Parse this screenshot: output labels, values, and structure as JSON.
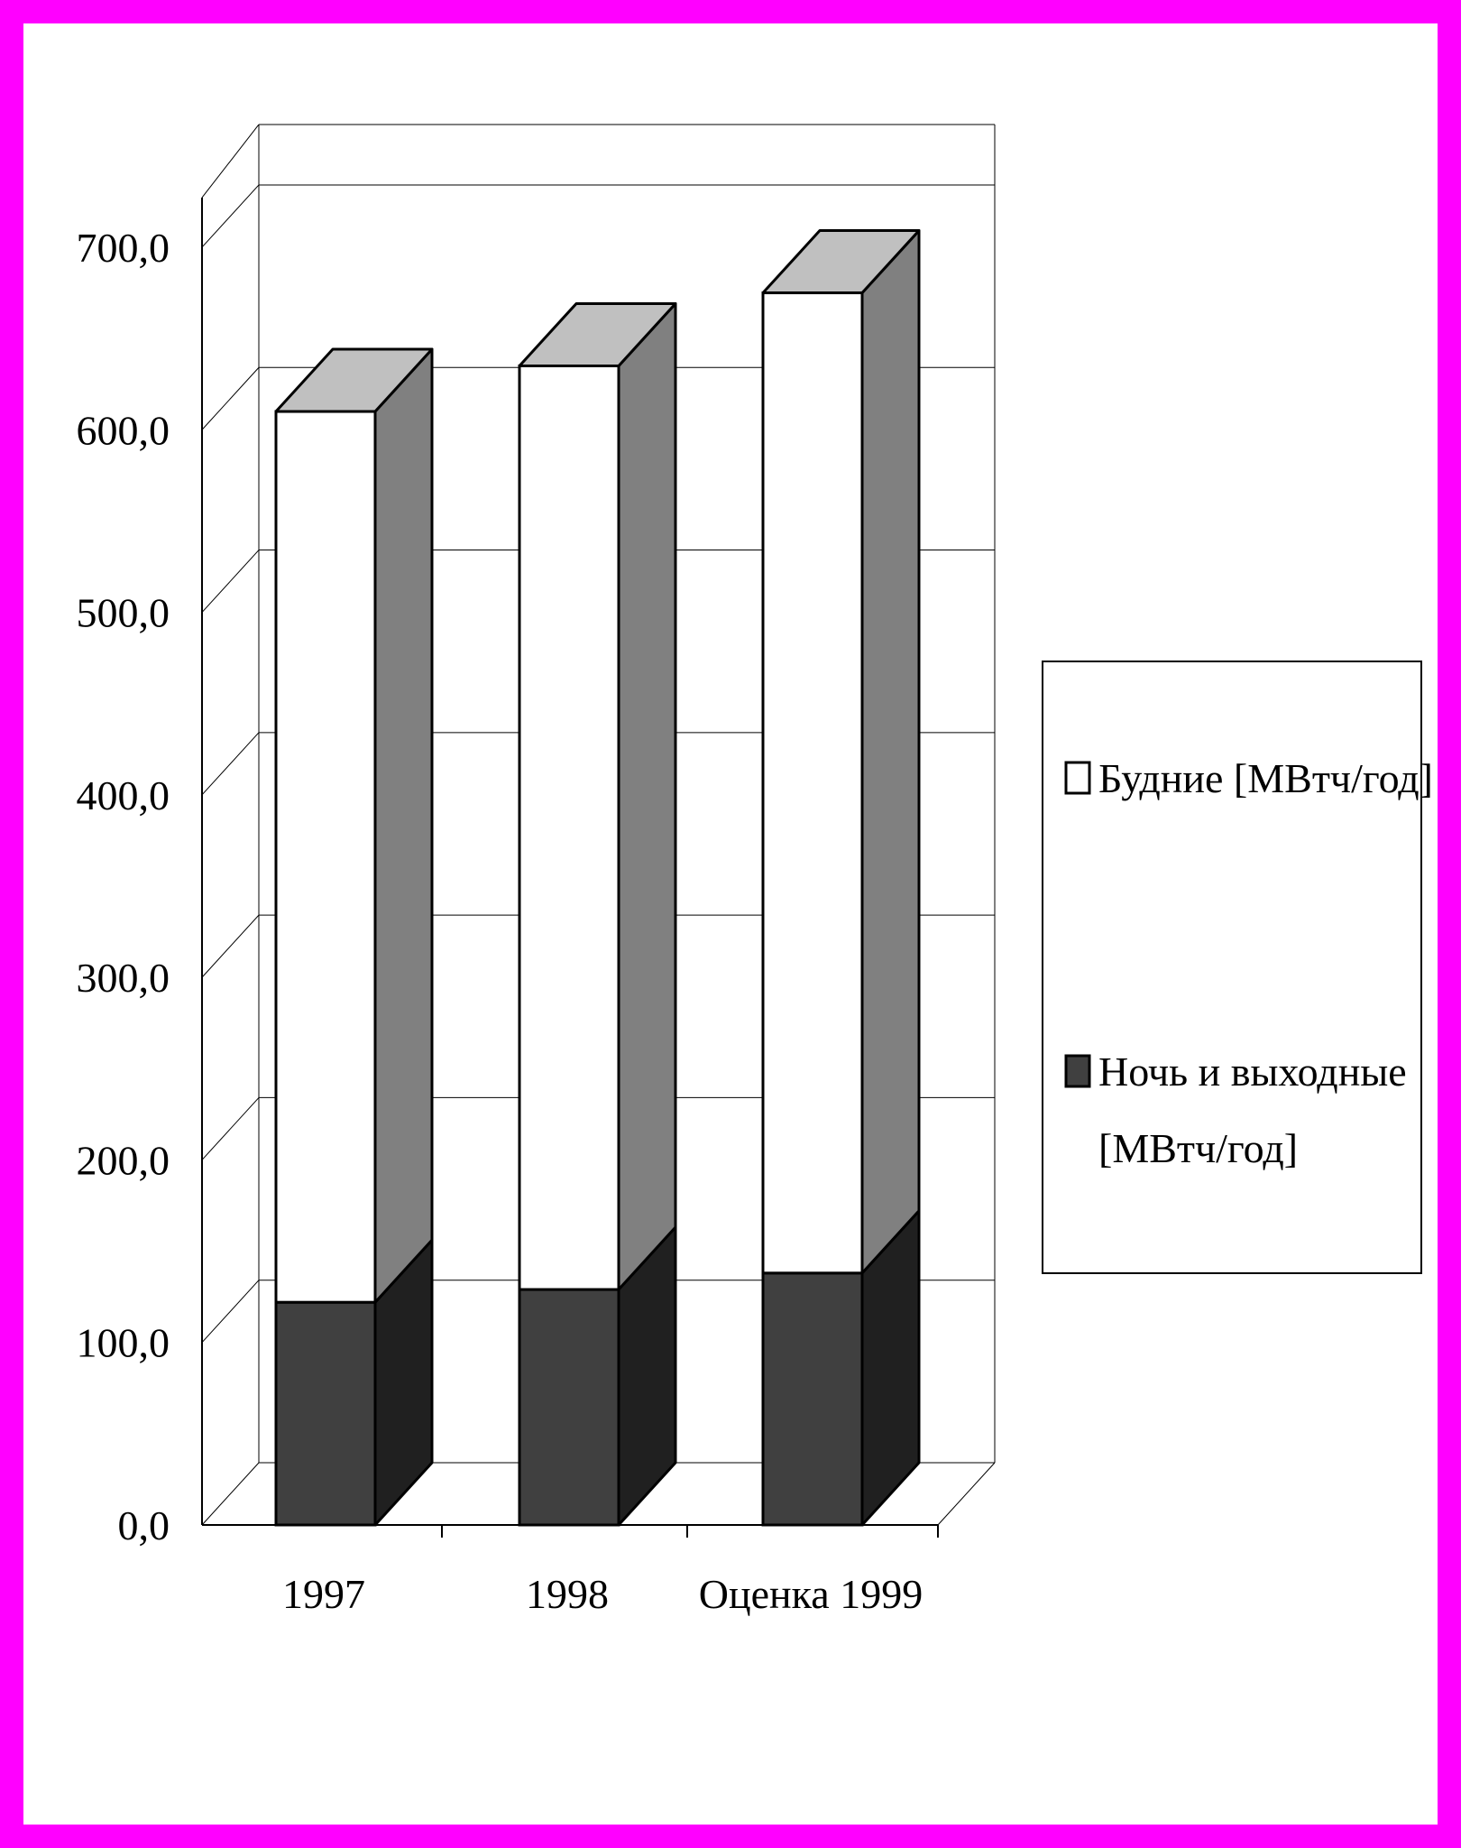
{
  "colors": {
    "frame": "#ff00ff",
    "background": "#ffffff",
    "weekday_front": "#ffffff",
    "weekday_side": "#808080",
    "top_face": "#c0c0c0",
    "night_front": "#404040",
    "night_side": "#202020"
  },
  "chart_data": {
    "type": "bar",
    "stacked": true,
    "three_d": true,
    "categories": [
      "1997",
      "1998",
      "Оценка 1999"
    ],
    "series": [
      {
        "name": "Ночь и выходные [МВтч/год]",
        "values": [
          122,
          129,
          138
        ]
      },
      {
        "name": "Будние [МВтч/год]",
        "values": [
          488,
          506,
          537
        ]
      }
    ],
    "y_ticks": [
      "0,0",
      "100,0",
      "200,0",
      "300,0",
      "400,0",
      "500,0",
      "600,0",
      "700,0"
    ],
    "ylim": [
      0,
      700
    ],
    "grid": true,
    "legend_position": "right"
  },
  "legend": {
    "weekday_label": "Будние [МВтч/год]",
    "night_label_line1": "Ночь и выходные",
    "night_label_line2": "[МВтч/год]"
  }
}
